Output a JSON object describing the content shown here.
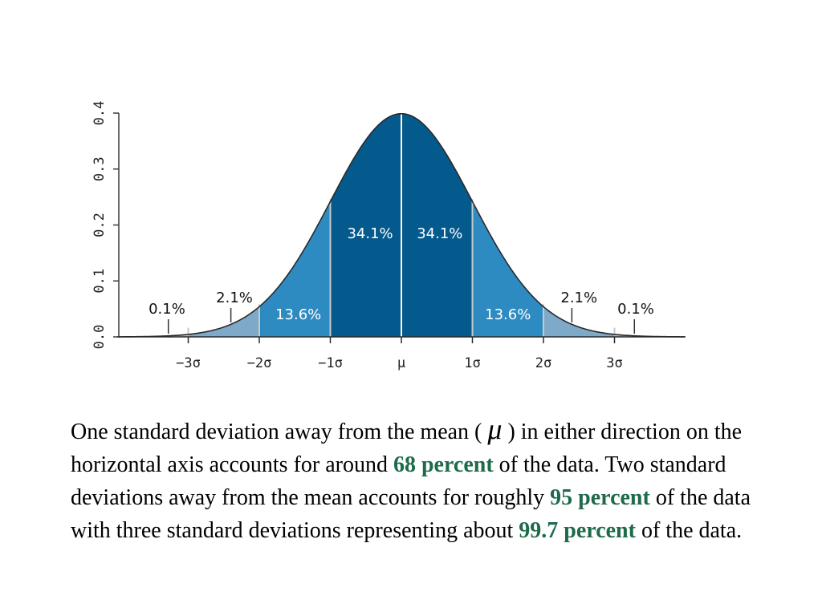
{
  "chart_data": {
    "type": "area",
    "title": "",
    "xlabel": "",
    "ylabel": "",
    "xlim": [
      -4,
      4
    ],
    "ylim": [
      0,
      0.4
    ],
    "y_ticks": [
      "0.0",
      "0.1",
      "0.2",
      "0.3",
      "0.4"
    ],
    "x_ticks": [
      {
        "x": -3,
        "label": "−3σ"
      },
      {
        "x": -2,
        "label": "−2σ"
      },
      {
        "x": -1,
        "label": "−1σ"
      },
      {
        "x": 0,
        "label": "μ"
      },
      {
        "x": 1,
        "label": "1σ"
      },
      {
        "x": 2,
        "label": "2σ"
      },
      {
        "x": 3,
        "label": "3σ"
      }
    ],
    "bands": [
      {
        "from": -4,
        "to": -3,
        "label": "0.1%",
        "color": "#a9c4d6"
      },
      {
        "from": -3,
        "to": -2,
        "label": "2.1%",
        "color": "#7fa9c8"
      },
      {
        "from": -2,
        "to": -1,
        "label": "13.6%",
        "color": "#2e8bc2"
      },
      {
        "from": -1,
        "to": 0,
        "label": "34.1%",
        "color": "#045a8d"
      },
      {
        "from": 0,
        "to": 1,
        "label": "34.1%",
        "color": "#045a8d"
      },
      {
        "from": 1,
        "to": 2,
        "label": "13.6%",
        "color": "#2e8bc2"
      },
      {
        "from": 2,
        "to": 3,
        "label": "2.1%",
        "color": "#7fa9c8"
      },
      {
        "from": 3,
        "to": 4,
        "label": "0.1%",
        "color": "#a9c4d6"
      }
    ],
    "grid": false,
    "legend": "none"
  },
  "caption": {
    "p1": "One standard deviation away from the mean ( ",
    "mu": "μ",
    "p2": " ) in either direction on the horizontal axis accounts for around ",
    "h1": "68 percent",
    "p3": " of the data. Two standard deviations away from the mean accounts for roughly ",
    "h2": "95 percent",
    "p4": " of the data with three standard deviations representing about ",
    "h3": "99.7 percent",
    "p5": " of the data."
  }
}
